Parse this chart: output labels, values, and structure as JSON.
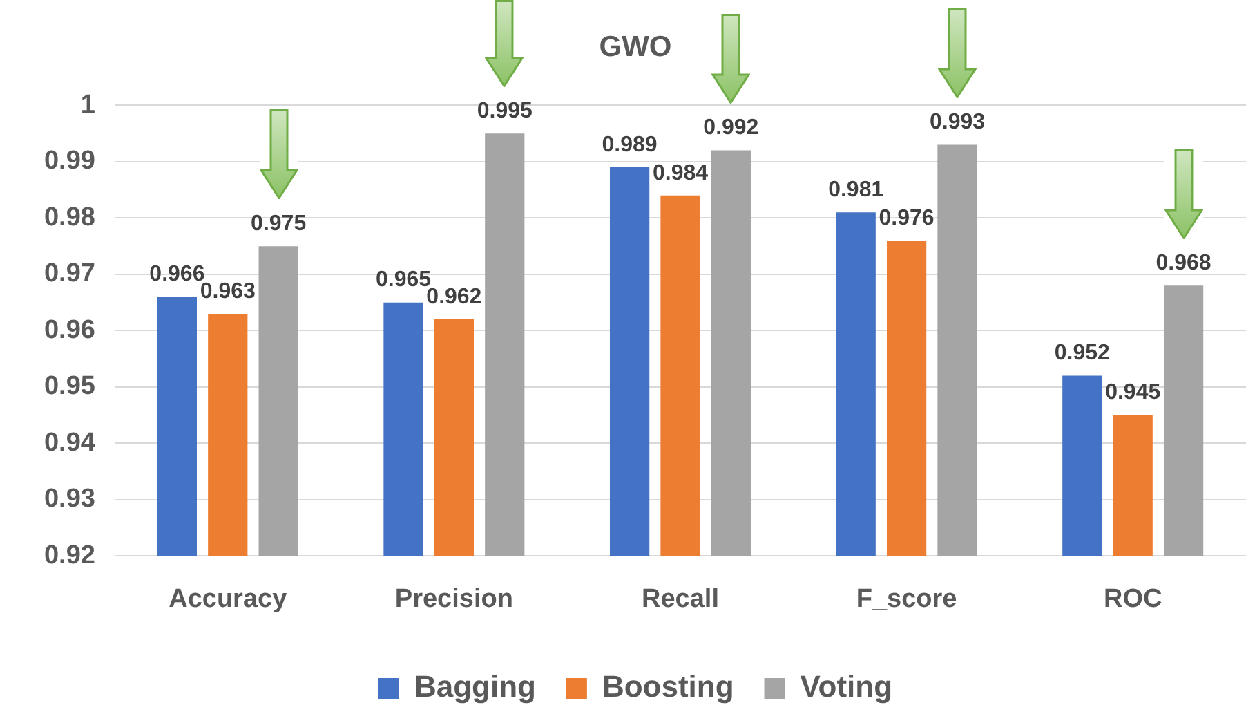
{
  "chart_data": {
    "type": "bar",
    "title": "GWO",
    "categories": [
      "Accuracy",
      "Precision",
      "Recall",
      "F_score",
      "ROC"
    ],
    "series": [
      {
        "name": "Bagging",
        "color": "#4472c4",
        "values": [
          0.966,
          0.965,
          0.989,
          0.981,
          0.952
        ]
      },
      {
        "name": "Boosting",
        "color": "#ed7d31",
        "values": [
          0.963,
          0.962,
          0.984,
          0.976,
          0.945
        ]
      },
      {
        "name": "Voting",
        "color": "#a5a5a5",
        "values": [
          0.975,
          0.995,
          0.992,
          0.993,
          0.968
        ]
      }
    ],
    "ylim": [
      0.92,
      1
    ],
    "yticks": [
      0.92,
      0.93,
      0.94,
      0.95,
      0.96,
      0.97,
      0.98,
      0.99,
      1
    ],
    "grid": "y",
    "legend": "bottom",
    "data_labels": true
  }
}
